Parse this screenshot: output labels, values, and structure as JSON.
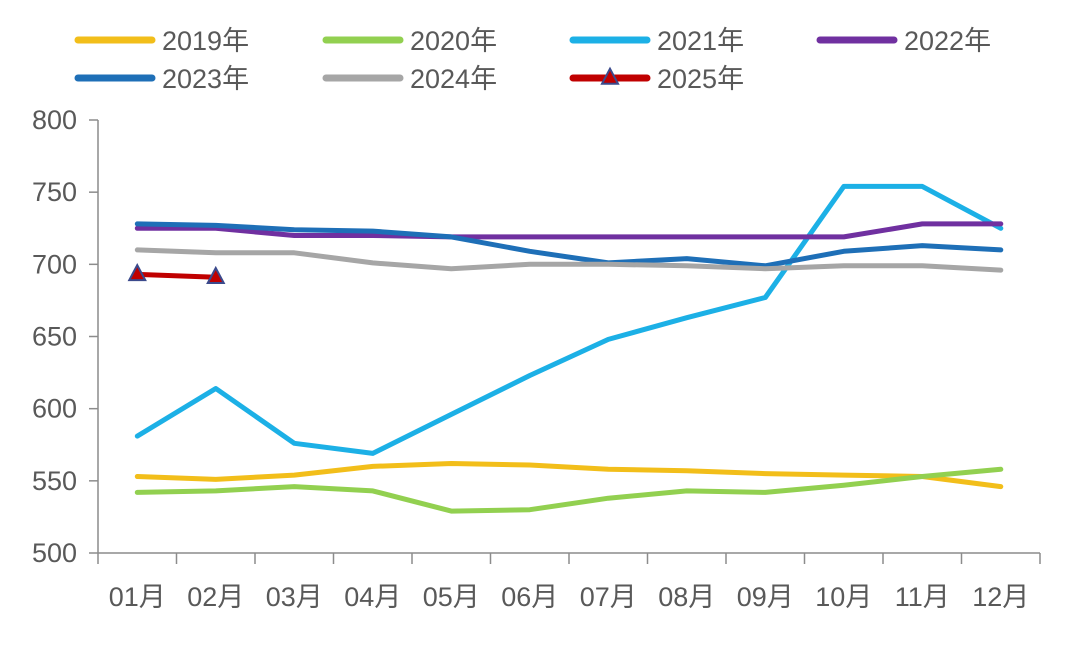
{
  "chart_data": {
    "type": "line",
    "title": "",
    "xlabel": "",
    "ylabel": "",
    "categories": [
      "01月",
      "02月",
      "03月",
      "04月",
      "05月",
      "06月",
      "07月",
      "08月",
      "09月",
      "10月",
      "11月",
      "12月"
    ],
    "ylim": [
      500,
      800
    ],
    "yticks": [
      500,
      550,
      600,
      650,
      700,
      750,
      800
    ],
    "grid": false,
    "legend_position": "top",
    "series": [
      {
        "name": "2019年",
        "color": "#F2BE1A",
        "marker": "none",
        "values": [
          553,
          551,
          554,
          560,
          562,
          561,
          558,
          557,
          555,
          554,
          553,
          546
        ]
      },
      {
        "name": "2020年",
        "color": "#92D050",
        "marker": "none",
        "values": [
          542,
          543,
          546,
          543,
          529,
          530,
          538,
          543,
          542,
          547,
          553,
          558
        ]
      },
      {
        "name": "2021年",
        "color": "#1CB0E6",
        "marker": "none",
        "values": [
          581,
          614,
          576,
          569,
          596,
          623,
          648,
          663,
          677,
          754,
          754,
          725
        ]
      },
      {
        "name": "2022年",
        "color": "#7030A0",
        "marker": "none",
        "values": [
          725,
          725,
          720,
          720,
          719,
          719,
          719,
          719,
          719,
          719,
          728,
          728
        ]
      },
      {
        "name": "2023年",
        "color": "#1E6FB7",
        "marker": "none",
        "values": [
          728,
          727,
          724,
          723,
          719,
          709,
          701,
          704,
          699,
          709,
          713,
          710
        ]
      },
      {
        "name": "2024年",
        "color": "#A6A6A6",
        "marker": "none",
        "values": [
          710,
          708,
          708,
          701,
          697,
          700,
          700,
          699,
          697,
          699,
          699,
          696
        ]
      },
      {
        "name": "2025年",
        "color": "#C00000",
        "marker": "triangle",
        "marker_fill": "#C00000",
        "marker_edge": "#3B4A8C",
        "values": [
          693,
          691,
          null,
          null,
          null,
          null,
          null,
          null,
          null,
          null,
          null,
          null
        ]
      }
    ]
  }
}
